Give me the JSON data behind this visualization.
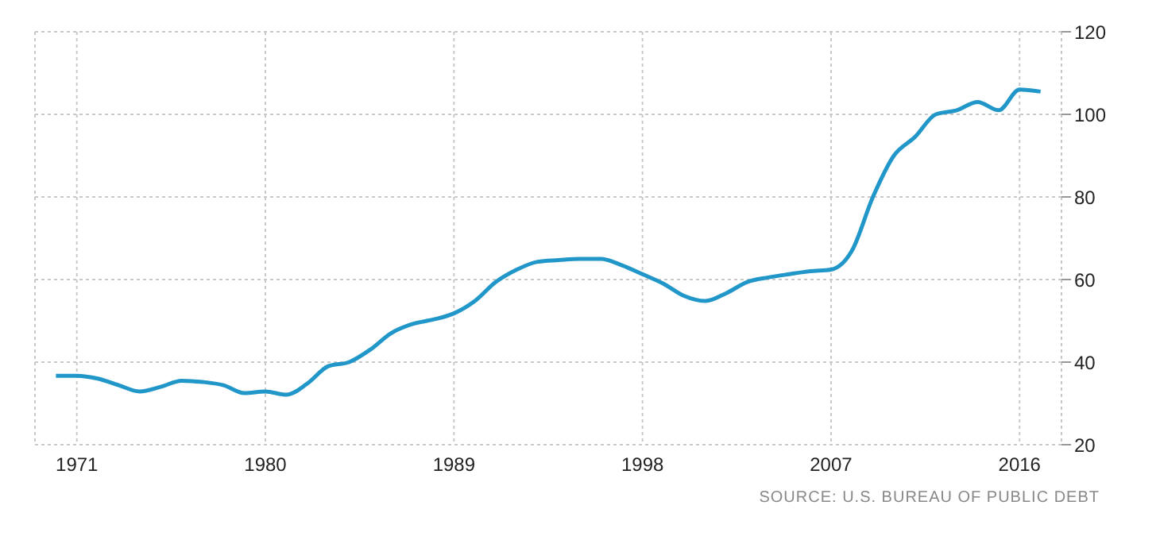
{
  "chart_data": {
    "type": "line",
    "x": [
      1970,
      1971,
      1972,
      1973,
      1974,
      1975,
      1976,
      1977,
      1978,
      1979,
      1980,
      1981,
      1982,
      1983,
      1984,
      1985,
      1986,
      1987,
      1988,
      1989,
      1990,
      1991,
      1992,
      1993,
      1994,
      1995,
      1996,
      1997,
      1998,
      1999,
      2000,
      2001,
      2002,
      2003,
      2004,
      2005,
      2006,
      2007,
      2008,
      2009,
      2010,
      2011,
      2012,
      2013,
      2014,
      2015,
      2016,
      2017
    ],
    "series": [
      {
        "color": "#2196c8",
        "values": [
          36.7,
          36.7,
          36,
          34.4,
          32.9,
          34,
          35.5,
          35.2,
          34.4,
          32.5,
          32.9,
          32.1,
          34.8,
          39,
          40,
          43,
          47,
          49.2,
          50.3,
          51.8,
          54.8,
          59.4,
          62.4,
          64.3,
          64.7,
          65,
          65,
          63.5,
          61.3,
          59,
          56,
          54.8,
          56.7,
          59.4,
          60.5,
          61.3,
          62,
          62.4,
          67,
          80,
          90,
          94.5,
          100,
          101,
          103,
          101,
          106,
          105.5
        ]
      }
    ],
    "xlim": [
      1969,
      2018
    ],
    "xticks": [
      1971,
      1980,
      1989,
      1998,
      2007,
      2016
    ],
    "ylim": [
      20,
      120
    ],
    "yticks": [
      20,
      40,
      60,
      80,
      100,
      120
    ],
    "grid": true,
    "legend": false,
    "marker": "none",
    "line_style": "solid",
    "annotations": [
      "SOURCE: U.S. BUREAU OF PUBLIC DEBT"
    ]
  }
}
